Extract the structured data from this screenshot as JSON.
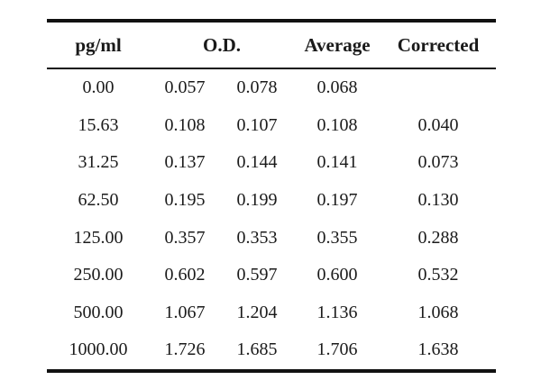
{
  "table": {
    "headers": {
      "pg_ml": "pg/ml",
      "od": "O.D.",
      "average": "Average",
      "corrected": "Corrected"
    },
    "rows": [
      {
        "pg_ml": "0.00",
        "od1": "0.057",
        "od2": "0.078",
        "average": "0.068",
        "corrected": ""
      },
      {
        "pg_ml": "15.63",
        "od1": "0.108",
        "od2": "0.107",
        "average": "0.108",
        "corrected": "0.040"
      },
      {
        "pg_ml": "31.25",
        "od1": "0.137",
        "od2": "0.144",
        "average": "0.141",
        "corrected": "0.073"
      },
      {
        "pg_ml": "62.50",
        "od1": "0.195",
        "od2": "0.199",
        "average": "0.197",
        "corrected": "0.130"
      },
      {
        "pg_ml": "125.00",
        "od1": "0.357",
        "od2": "0.353",
        "average": "0.355",
        "corrected": "0.288"
      },
      {
        "pg_ml": "250.00",
        "od1": "0.602",
        "od2": "0.597",
        "average": "0.600",
        "corrected": "0.532"
      },
      {
        "pg_ml": "500.00",
        "od1": "1.067",
        "od2": "1.204",
        "average": "1.136",
        "corrected": "1.068"
      },
      {
        "pg_ml": "1000.00",
        "od1": "1.726",
        "od2": "1.685",
        "average": "1.706",
        "corrected": "1.638"
      }
    ]
  }
}
